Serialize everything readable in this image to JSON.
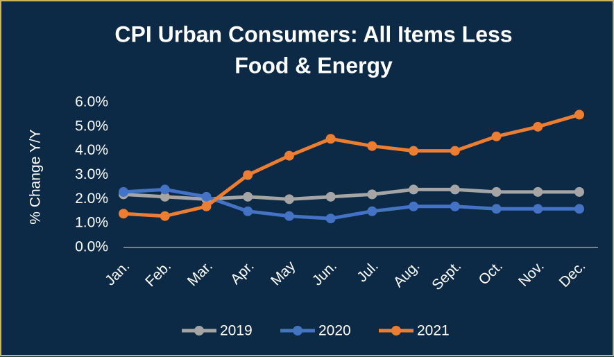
{
  "chart_data": {
    "type": "line",
    "title": [
      "CPI Urban Consumers: All Items Less",
      "Food & Energy"
    ],
    "y_label": "% Change Y/Y",
    "categories": [
      "Jan.",
      "Feb.",
      "Mar.",
      "Apr.",
      "May",
      "Jun.",
      "Jul.",
      "Aug.",
      "Sept.",
      "Oct.",
      "Nov.",
      "Dec."
    ],
    "series": [
      {
        "name": "2019",
        "color": "#a5a5a5",
        "values": [
          2.2,
          2.1,
          2.0,
          2.1,
          2.0,
          2.1,
          2.2,
          2.4,
          2.4,
          2.3,
          2.3,
          2.3
        ]
      },
      {
        "name": "2020",
        "color": "#4472c4",
        "values": [
          2.3,
          2.4,
          2.1,
          1.5,
          1.3,
          1.2,
          1.5,
          1.7,
          1.7,
          1.6,
          1.6,
          1.6
        ]
      },
      {
        "name": "2021",
        "color": "#ed7d31",
        "values": [
          1.4,
          1.3,
          1.7,
          3.0,
          3.8,
          4.5,
          4.2,
          4.0,
          4.0,
          4.6,
          5.0,
          5.5
        ]
      }
    ],
    "ylim": [
      0,
      6
    ],
    "yticks": [
      {
        "value": 0,
        "label": "0.0%"
      },
      {
        "value": 1,
        "label": "1.0%"
      },
      {
        "value": 2,
        "label": "2.0%"
      },
      {
        "value": 3,
        "label": "3.0%"
      },
      {
        "value": 4,
        "label": "4.0%"
      },
      {
        "value": 5,
        "label": "5.0%"
      },
      {
        "value": 6,
        "label": "6.0%"
      }
    ],
    "legend": "bottom"
  }
}
